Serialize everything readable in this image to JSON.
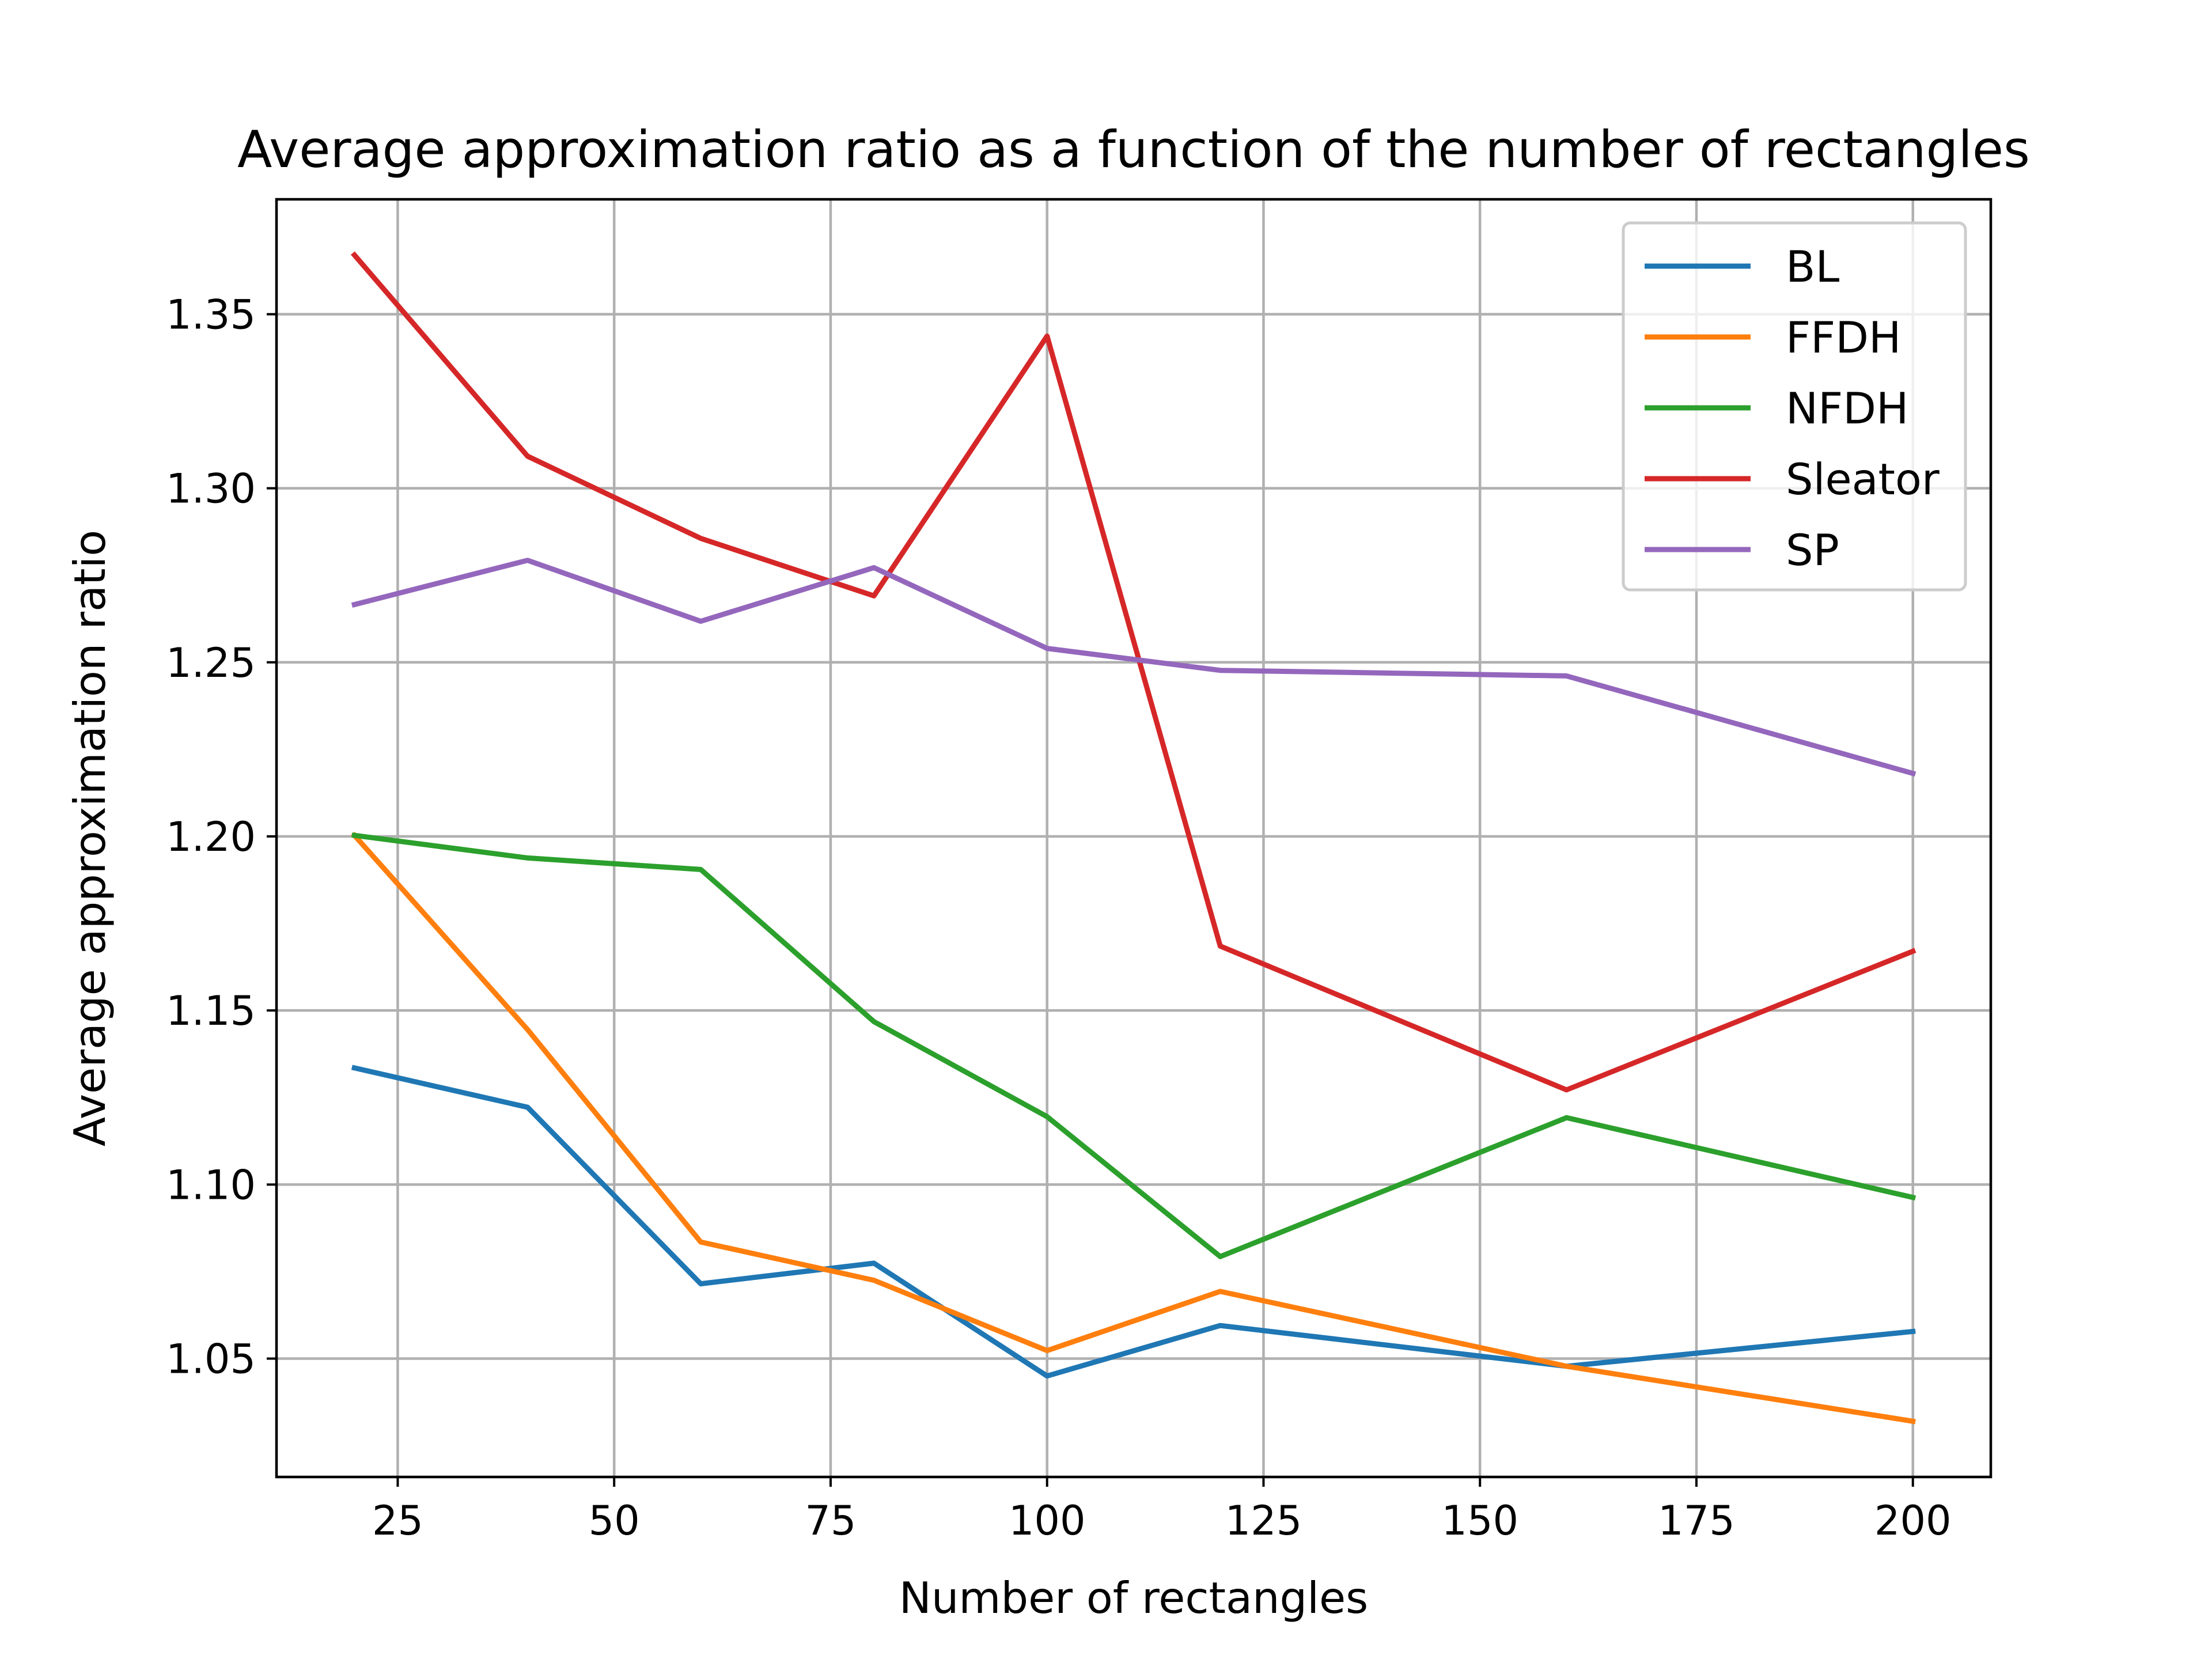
{
  "chart_data": {
    "type": "line",
    "title": "Average approximation ratio as a function of the number of rectangles",
    "xlabel": "Number of rectangles",
    "ylabel": "Average approximation ratio",
    "xlim": [
      11,
      209
    ],
    "ylim": [
      1.016,
      1.383
    ],
    "x_ticks": [
      25,
      50,
      75,
      100,
      125,
      150,
      175,
      200
    ],
    "x_tick_labels": [
      "25",
      "50",
      "75",
      "100",
      "125",
      "150",
      "175",
      "200"
    ],
    "y_ticks": [
      1.05,
      1.1,
      1.15,
      1.2,
      1.25,
      1.3,
      1.35
    ],
    "y_tick_labels": [
      "1.05",
      "1.10",
      "1.15",
      "1.20",
      "1.25",
      "1.30",
      "1.35"
    ],
    "grid": true,
    "legend_position": "top-right",
    "x": [
      20,
      40,
      60,
      80,
      100,
      120,
      160,
      200
    ],
    "series": [
      {
        "name": "BL",
        "color": "#1f77b4",
        "values": [
          1.1335,
          1.1222,
          1.0715,
          1.0774,
          1.045,
          1.0595,
          1.0478,
          1.0578
        ]
      },
      {
        "name": "FFDH",
        "color": "#ff7f0e",
        "values": [
          1.2003,
          1.1445,
          1.0835,
          1.0725,
          1.0523,
          1.0693,
          1.0478,
          1.032
        ]
      },
      {
        "name": "NFDH",
        "color": "#2ca02c",
        "values": [
          1.2003,
          1.1938,
          1.1905,
          1.1468,
          1.1195,
          1.0793,
          1.1192,
          1.0963
        ]
      },
      {
        "name": "Sleator",
        "color": "#d62728",
        "values": [
          1.367,
          1.3092,
          1.2856,
          1.2691,
          1.3437,
          1.1685,
          1.1272,
          1.167
        ]
      },
      {
        "name": "SP",
        "color": "#9467bd",
        "values": [
          1.2666,
          1.2793,
          1.2618,
          1.2772,
          1.254,
          1.2477,
          1.2461,
          1.2181
        ]
      }
    ]
  }
}
